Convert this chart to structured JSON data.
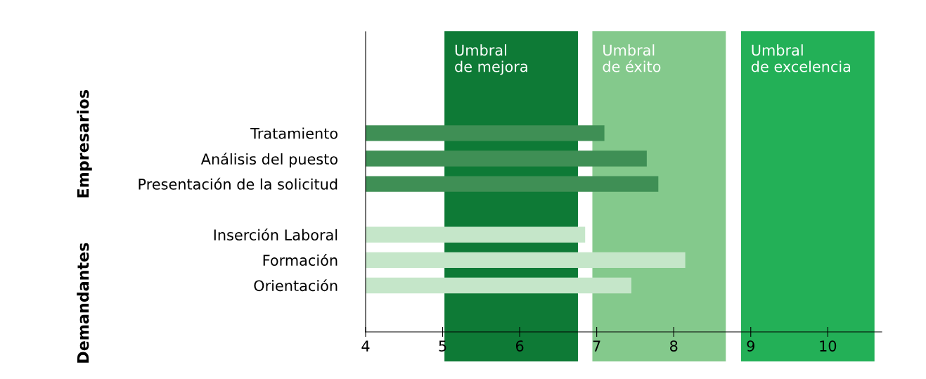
{
  "chart_data": {
    "type": "bar",
    "orientation": "horizontal",
    "categories": [
      "Tratamiento",
      "Análisis del puesto",
      "Presentación de la solicitud",
      null,
      "Inserción Laboral",
      "Formación",
      "Orientación"
    ],
    "values": [
      7.1,
      7.65,
      7.8,
      null,
      6.85,
      8.15,
      7.45
    ],
    "colors": [
      "#3f8f55",
      "#3f8f55",
      "#3f8f55",
      "#3f8f55",
      "#c5e6c9",
      "#c5e6c9",
      "#c5e6c9"
    ],
    "xlim": [
      4,
      10.7
    ],
    "xticks": [
      4,
      5,
      6,
      7,
      8,
      9,
      10
    ],
    "bands": [
      {
        "axis": "x",
        "from": 5.03,
        "to": 6.75,
        "label": "Umbral\nde mejora",
        "color": "#0e7a36"
      },
      {
        "axis": "x",
        "from": 6.95,
        "to": 8.67,
        "label": "Umbral\nde éxito",
        "color": "#84c98c"
      },
      {
        "axis": "x",
        "from": 8.88,
        "to": 10.6,
        "label": "Umbral\nde excelencia",
        "color": "#23b057"
      }
    ],
    "annotations": [
      "Empresarios",
      "Demandantes"
    ],
    "grid": false,
    "legend": false
  }
}
